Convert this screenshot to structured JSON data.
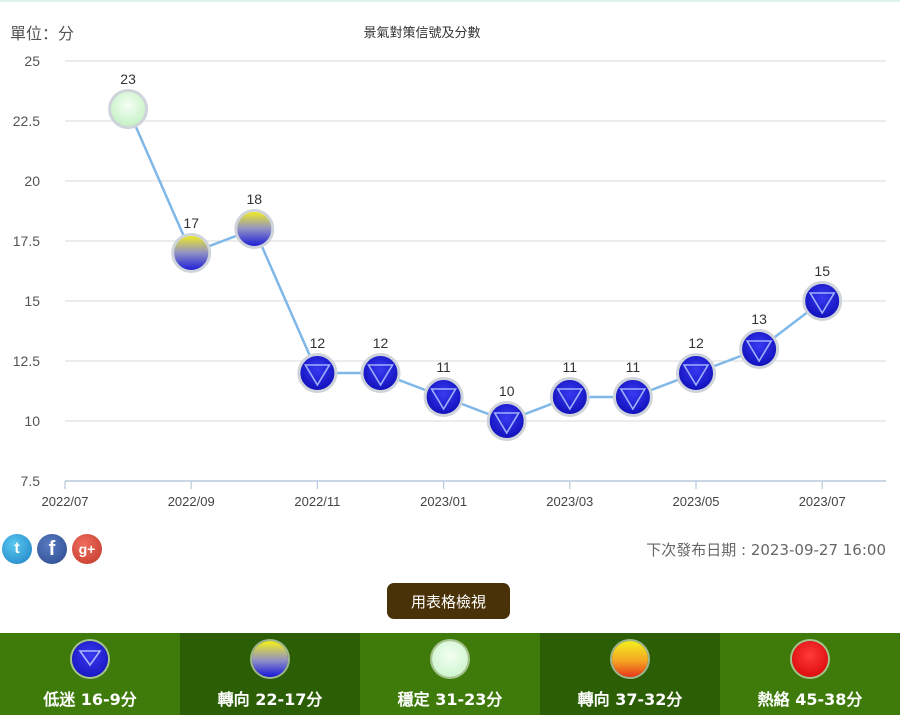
{
  "unit_label": "單位：分",
  "title": "景氣對策信號及分數",
  "next_release": "下次發布日期 : 2023-09-27 16:00",
  "table_button": "用表格檢視",
  "social": {
    "twitter": "twitter-icon",
    "facebook": "facebook-icon",
    "googleplus": "googleplus-icon"
  },
  "legend": [
    {
      "label": "低迷 16-9分",
      "icon": "blue-down-triangle-dot-icon",
      "color": "#1515d8"
    },
    {
      "label": "轉向 22-17分",
      "icon": "yellow-blue-dot-icon",
      "color": "#8e8ec8"
    },
    {
      "label": "穩定 31-23分",
      "icon": "green-dot-icon",
      "color": "#c5f2c5"
    },
    {
      "label": "轉向 37-32分",
      "icon": "yellow-red-dot-icon",
      "color": "#f5a623"
    },
    {
      "label": "熱絡 45-38分",
      "icon": "red-dot-icon",
      "color": "#e00000"
    }
  ],
  "chart_data": {
    "type": "line",
    "title": "景氣對策信號及分數",
    "ylabel": "單位：分",
    "xlabel": "",
    "ylim": [
      7.5,
      25
    ],
    "yticks": [
      "7.5",
      "10",
      "12.5",
      "15",
      "17.5",
      "20",
      "22.5",
      "25"
    ],
    "xlim": [
      "2022/07",
      "2023/08"
    ],
    "xticks": [
      "2022/07",
      "2022/09",
      "2022/11",
      "2023/01",
      "2023/03",
      "2023/05",
      "2023/07"
    ],
    "grid": true,
    "line_color": "#7fb8e8",
    "points": [
      {
        "x": "2022/08",
        "y": 23,
        "signal": "green"
      },
      {
        "x": "2022/09",
        "y": 17,
        "signal": "yellow-blue"
      },
      {
        "x": "2022/10",
        "y": 18,
        "signal": "yellow-blue"
      },
      {
        "x": "2022/11",
        "y": 12,
        "signal": "blue"
      },
      {
        "x": "2022/12",
        "y": 12,
        "signal": "blue"
      },
      {
        "x": "2023/01",
        "y": 11,
        "signal": "blue"
      },
      {
        "x": "2023/02",
        "y": 10,
        "signal": "blue"
      },
      {
        "x": "2023/03",
        "y": 11,
        "signal": "blue"
      },
      {
        "x": "2023/04",
        "y": 11,
        "signal": "blue"
      },
      {
        "x": "2023/05",
        "y": 12,
        "signal": "blue"
      },
      {
        "x": "2023/06",
        "y": 13,
        "signal": "blue"
      },
      {
        "x": "2023/07",
        "y": 15,
        "signal": "blue"
      }
    ]
  }
}
